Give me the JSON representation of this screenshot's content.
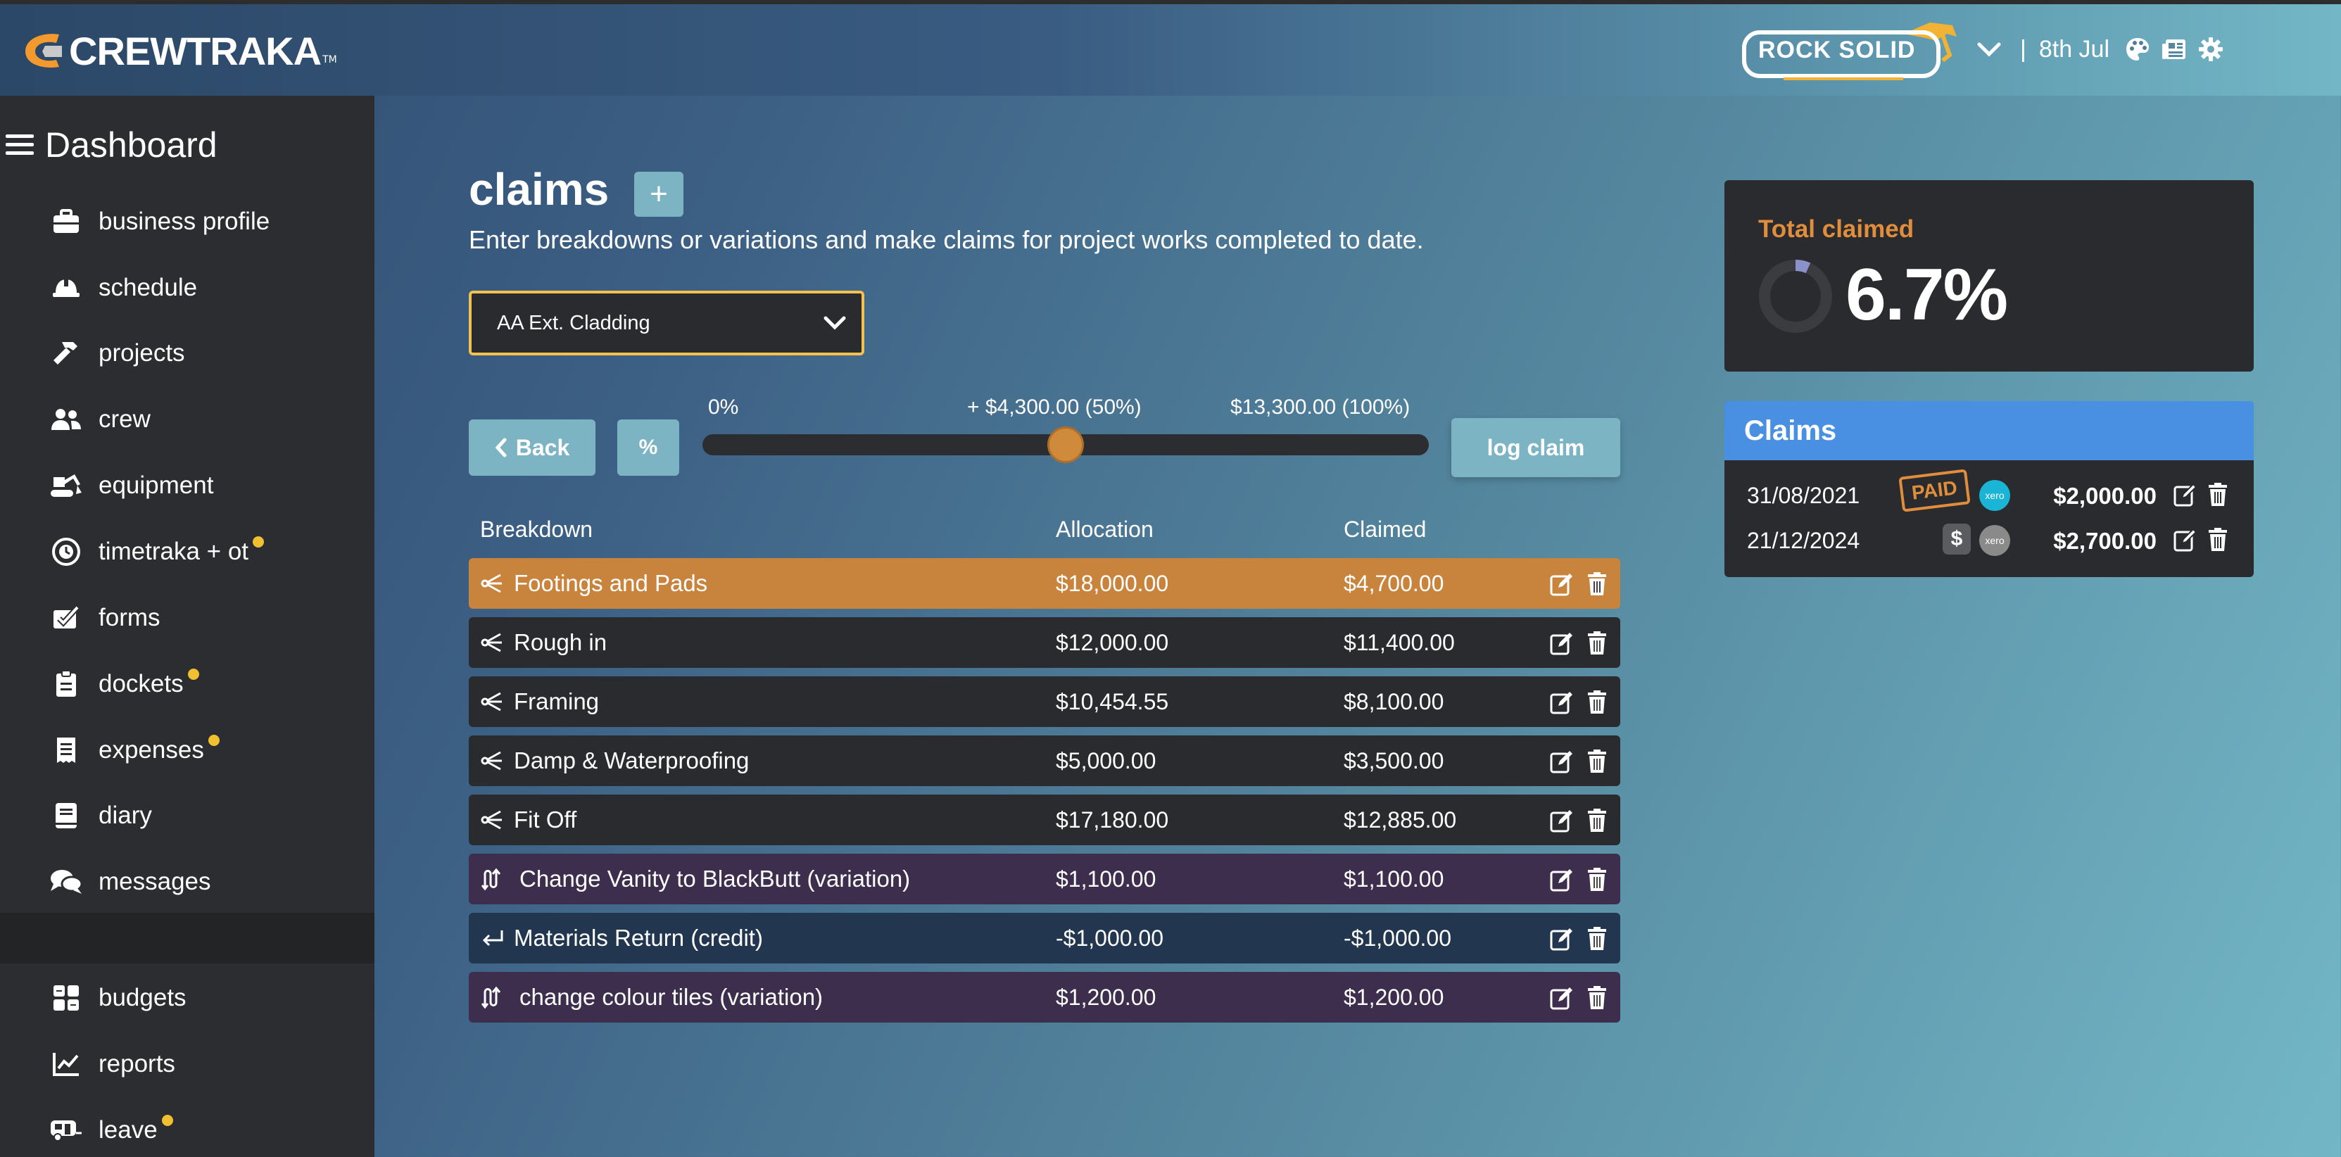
{
  "topbar": {
    "brand": "CREWTRAKA",
    "brand_tm": "TM",
    "company_logo_text": "ROCK SOLID",
    "date": "8th Jul",
    "separator": "|",
    "icons": [
      "chevron-down-icon",
      "palette-icon",
      "newspaper-icon",
      "gear-icon"
    ]
  },
  "sidebar": {
    "title": "Dashboard",
    "items": [
      {
        "label": "business profile",
        "icon": "briefcase-icon",
        "dot": false
      },
      {
        "label": "schedule",
        "icon": "hard-hat-icon",
        "dot": false
      },
      {
        "label": "projects",
        "icon": "hammer-icon",
        "dot": false
      },
      {
        "label": "crew",
        "icon": "users-icon",
        "dot": false
      },
      {
        "label": "equipment",
        "icon": "excavator-icon",
        "dot": false
      },
      {
        "label": "timetraka + ot",
        "icon": "clock-icon",
        "dot": true
      },
      {
        "label": "forms",
        "icon": "form-check-icon",
        "dot": false
      },
      {
        "label": "dockets",
        "icon": "clipboard-icon",
        "dot": true
      },
      {
        "label": "expenses",
        "icon": "receipt-icon",
        "dot": true
      },
      {
        "label": "diary",
        "icon": "book-icon",
        "dot": false
      },
      {
        "label": "messages",
        "icon": "comments-icon",
        "dot": false
      },
      {
        "label": "budgets",
        "icon": "calculator-icon",
        "dot": false
      },
      {
        "label": "reports",
        "icon": "chart-line-icon",
        "dot": false
      },
      {
        "label": "leave",
        "icon": "caravan-icon",
        "dot": true
      }
    ]
  },
  "main": {
    "title": "claims",
    "add_label": "+",
    "subtitle": "Enter breakdowns or variations and make claims for project works completed to date.",
    "project_select": "AA Ext. Cladding",
    "back_label": "Back",
    "percent_label": "%",
    "log_claim_label": "log claim",
    "slider": {
      "min_label": "0%",
      "mid_label": "+ $4,300.00 (50%)",
      "max_label": "$13,300.00 (100%)",
      "value_fraction": 0.5
    },
    "columns": {
      "breakdown": "Breakdown",
      "allocation": "Allocation",
      "claimed": "Claimed"
    },
    "rows": [
      {
        "name": "Footings and Pads",
        "allocation": "$18,000.00",
        "claimed": "$4,700.00",
        "kind": "breakdown",
        "selected": true
      },
      {
        "name": "Rough in",
        "allocation": "$12,000.00",
        "claimed": "$11,400.00",
        "kind": "breakdown",
        "selected": false
      },
      {
        "name": "Framing",
        "allocation": "$10,454.55",
        "claimed": "$8,100.00",
        "kind": "breakdown",
        "selected": false
      },
      {
        "name": "Damp & Waterproofing",
        "allocation": "$5,000.00",
        "claimed": "$3,500.00",
        "kind": "breakdown",
        "selected": false
      },
      {
        "name": "Fit Off",
        "allocation": "$17,180.00",
        "claimed": "$12,885.00",
        "kind": "breakdown",
        "selected": false
      },
      {
        "name": "Change Vanity to BlackButt (variation)",
        "allocation": "$1,100.00",
        "claimed": "$1,100.00",
        "kind": "variation",
        "selected": false
      },
      {
        "name": "Materials Return (credit)",
        "allocation": "-$1,000.00",
        "claimed": "-$1,000.00",
        "kind": "credit",
        "selected": false
      },
      {
        "name": "change colour tiles (variation)",
        "allocation": "$1,200.00",
        "claimed": "$1,200.00",
        "kind": "variation",
        "selected": false
      }
    ]
  },
  "total": {
    "label": "Total claimed",
    "value": "6.7%",
    "fraction": 0.067
  },
  "claims_panel": {
    "title": "Claims",
    "items": [
      {
        "date": "31/08/2021",
        "status": "PAID",
        "amount": "$2,000.00"
      },
      {
        "date": "21/12/2024",
        "status": "$",
        "amount": "$2,700.00"
      }
    ],
    "xero_label": "xero"
  },
  "colors": {
    "accent_orange": "#d08a3c",
    "selected_row": "#c8843d",
    "breakdown_row": "#2a2b2e",
    "variation_row": "#3c2e4c",
    "credit_row": "#22374f",
    "claims_header": "#4a90e2",
    "select_border": "#f2c14e",
    "notification_dot": "#f0c030",
    "button": "#7cb4c3"
  }
}
